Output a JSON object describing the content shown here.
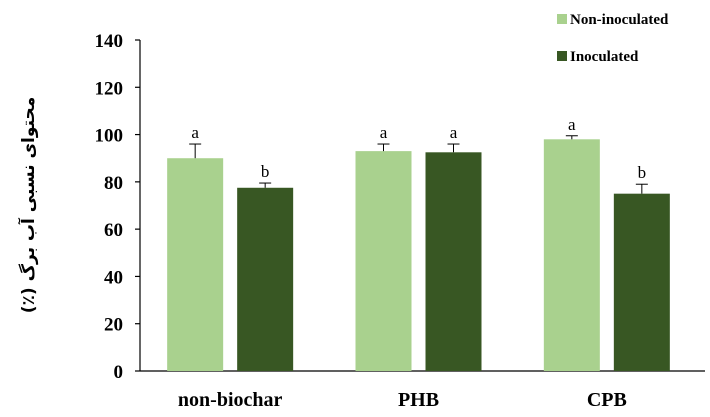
{
  "chart_data": {
    "type": "bar",
    "categories": [
      "non-biochar",
      "PHB",
      "CPB"
    ],
    "series": [
      {
        "name": "Non-inoculated",
        "color": "#a9d18e",
        "values": [
          90,
          93,
          98
        ],
        "errors": [
          6,
          3,
          1.5
        ],
        "letters": [
          "a",
          "a",
          "a"
        ]
      },
      {
        "name": "Inoculated",
        "color": "#385723",
        "values": [
          77.5,
          92.5,
          75
        ],
        "errors": [
          2,
          3.5,
          4
        ],
        "letters": [
          "b",
          "a",
          "b"
        ]
      }
    ],
    "ylabel": "محتوای نسبی آب برگ (٪)",
    "ylim": [
      0,
      140
    ],
    "yticks": [
      0,
      20,
      40,
      60,
      80,
      100,
      120,
      140
    ],
    "grid": false,
    "legend_position": "top-right"
  }
}
